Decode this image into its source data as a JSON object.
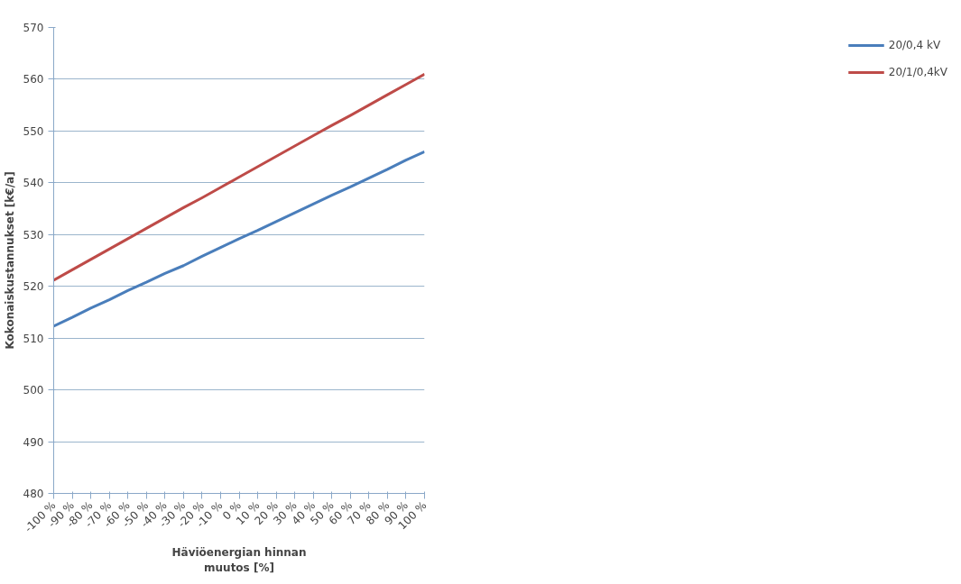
{
  "chart_data": {
    "type": "line",
    "xlabel": "Häviöenergian hinnan\nmuutos [%]",
    "ylabel": "Kokonaiskustannukset [k€/a]",
    "categories": [
      "-100 %",
      "-90 %",
      "-80 %",
      "-70 %",
      "-60 %",
      "-50 %",
      "-40 %",
      "-30 %",
      "-20 %",
      "-10 %",
      "0 %",
      "10 %",
      "20 %",
      "30 %",
      "40 %",
      "50 %",
      "60 %",
      "70 %",
      "80 %",
      "90 %",
      "100 %"
    ],
    "series": [
      {
        "name": "20/0,4 kV",
        "color": "#4a7ebb",
        "values": [
          512.3,
          514,
          515.8,
          517.4,
          519.2,
          520.8,
          522.5,
          524,
          525.8,
          527.5,
          529.2,
          530.8,
          532.5,
          534.2,
          535.9,
          537.6,
          539.2,
          540.9,
          542.6,
          544.4,
          546
        ]
      },
      {
        "name": "20/1/0,4kV",
        "color": "#be4b48",
        "values": [
          521.2,
          523.2,
          525.2,
          527.2,
          529.2,
          531.2,
          533.2,
          535.2,
          537.1,
          539.1,
          541.1,
          543.1,
          545.1,
          547.1,
          549.1,
          551.1,
          553,
          555,
          557,
          559,
          561
        ]
      }
    ],
    "ylim": [
      480,
      570
    ],
    "yticks": [
      480,
      490,
      500,
      510,
      520,
      530,
      540,
      550,
      560,
      570
    ],
    "grid": "y",
    "legend": "right",
    "marker": "none",
    "line_style": "solid"
  }
}
